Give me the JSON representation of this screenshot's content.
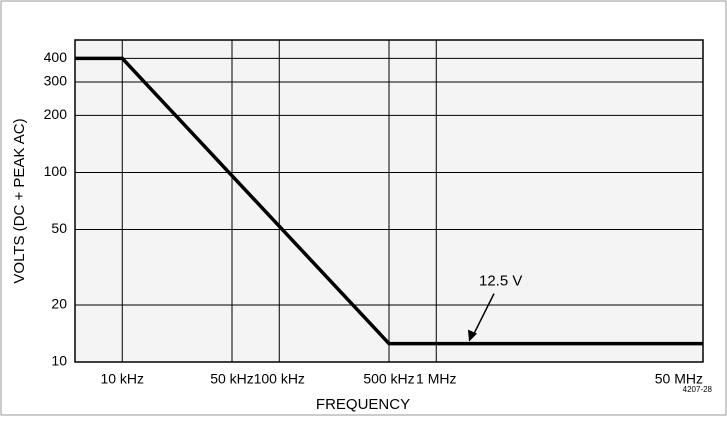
{
  "chart_data": {
    "type": "line",
    "xlabel": "FREQUENCY",
    "ylabel": "VOLTS (DC + PEAK AC)",
    "x": [
      5000,
      10000,
      500000,
      50000000
    ],
    "values": [
      400,
      400,
      12.5,
      12.5
    ],
    "color": "#000000",
    "xscale": "log",
    "yscale": "log",
    "grid": true,
    "xlim": [
      5000,
      50000000
    ],
    "ylim": [
      10,
      500
    ],
    "xticks": [
      {
        "value": 10000,
        "label": "10 kHz"
      },
      {
        "value": 50000,
        "label": "50 kHz"
      },
      {
        "value": 100000,
        "label": "100 kHz"
      },
      {
        "value": 500000,
        "label": "500 kHz"
      },
      {
        "value": 1000000,
        "label": "1 MHz"
      },
      {
        "value": 50000000,
        "label": "50 MHz"
      }
    ],
    "yticks": [
      10,
      20,
      50,
      100,
      200,
      300,
      400
    ],
    "annotation": "12.5 V",
    "figure_id": "4207-28"
  }
}
